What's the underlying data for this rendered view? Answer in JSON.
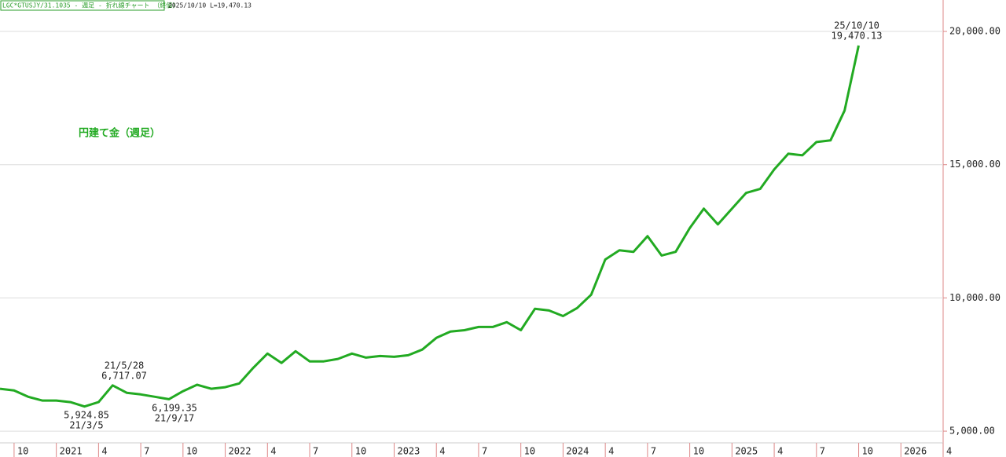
{
  "chart_data": {
    "type": "line",
    "header": "LGC*GTUSJY/31.1035 - 週足 - 折れ線チャート （終値）",
    "header_info": "2025/10/10 L=19,470.13",
    "x": [
      "2020-09",
      "2020-10",
      "2020-11",
      "2020-12",
      "2021-01",
      "2021-02",
      "2021-03",
      "2021-04",
      "2021-05",
      "2021-06",
      "2021-07",
      "2021-08",
      "2021-09",
      "2021-10",
      "2021-11",
      "2021-12",
      "2022-01",
      "2022-02",
      "2022-03",
      "2022-04",
      "2022-05",
      "2022-06",
      "2022-07",
      "2022-08",
      "2022-09",
      "2022-10",
      "2022-11",
      "2022-12",
      "2023-01",
      "2023-02",
      "2023-03",
      "2023-04",
      "2023-05",
      "2023-06",
      "2023-07",
      "2023-08",
      "2023-09",
      "2023-10",
      "2023-11",
      "2023-12",
      "2024-01",
      "2024-02",
      "2024-03",
      "2024-04",
      "2024-05",
      "2024-06",
      "2024-07",
      "2024-08",
      "2024-09",
      "2024-10",
      "2024-11",
      "2024-12",
      "2025-01",
      "2025-02",
      "2025-03",
      "2025-04",
      "2025-05",
      "2025-06",
      "2025-07",
      "2025-08",
      "2025-09",
      "2025-10"
    ],
    "series": [
      {
        "name": "円建て金（週足）",
        "color": "#22aa22",
        "values": [
          6590,
          6530,
          6290,
          6150,
          6150,
          6090,
          5924.85,
          6090,
          6717.07,
          6440,
          6380,
          6290,
          6199.35,
          6500,
          6740,
          6590,
          6650,
          6790,
          7380,
          7910,
          7560,
          8000,
          7620,
          7620,
          7710,
          7910,
          7760,
          7820,
          7790,
          7850,
          8060,
          8500,
          8740,
          8790,
          8910,
          8910,
          9090,
          8790,
          9590,
          9530,
          9320,
          9620,
          10120,
          11440,
          11790,
          11730,
          12320,
          11590,
          11730,
          12620,
          13350,
          12760,
          13350,
          13940,
          14090,
          14820,
          15410,
          15350,
          15850,
          15910,
          17030,
          19470.13
        ]
      }
    ],
    "annotations": [
      "21/5/28",
      "6,717.07",
      "5,924.85",
      "21/3/5",
      "6,199.35",
      "21/9/17",
      "25/10/10",
      "19,470.13"
    ],
    "xlim": [
      "2020-09",
      "2026-04"
    ],
    "xticks": [
      {
        "value": "2020-10",
        "label": "10"
      },
      {
        "value": "2021-01",
        "label": "2021"
      },
      {
        "value": "2021-04",
        "label": "4"
      },
      {
        "value": "2021-07",
        "label": "7"
      },
      {
        "value": "2021-10",
        "label": "10"
      },
      {
        "value": "2022-01",
        "label": "2022"
      },
      {
        "value": "2022-04",
        "label": "4"
      },
      {
        "value": "2022-07",
        "label": "7"
      },
      {
        "value": "2022-10",
        "label": "10"
      },
      {
        "value": "2023-01",
        "label": "2023"
      },
      {
        "value": "2023-04",
        "label": "4"
      },
      {
        "value": "2023-07",
        "label": "7"
      },
      {
        "value": "2023-10",
        "label": "10"
      },
      {
        "value": "2024-01",
        "label": "2024"
      },
      {
        "value": "2024-04",
        "label": "4"
      },
      {
        "value": "2024-07",
        "label": "7"
      },
      {
        "value": "2024-10",
        "label": "10"
      },
      {
        "value": "2025-01",
        "label": "2025"
      },
      {
        "value": "2025-04",
        "label": "4"
      },
      {
        "value": "2025-07",
        "label": "7"
      },
      {
        "value": "2025-10",
        "label": "10"
      },
      {
        "value": "2026-01",
        "label": "2026"
      },
      {
        "value": "2026-04",
        "label": "4"
      }
    ],
    "ylim": [
      4030,
      21180
    ],
    "yticks": [
      {
        "value": 5000,
        "label": "5,000.00"
      },
      {
        "value": 10000,
        "label": "10,000.00"
      },
      {
        "value": 15000,
        "label": "15,000.00"
      },
      {
        "value": 20000,
        "label": "20,000.00"
      }
    ],
    "grid": true
  }
}
